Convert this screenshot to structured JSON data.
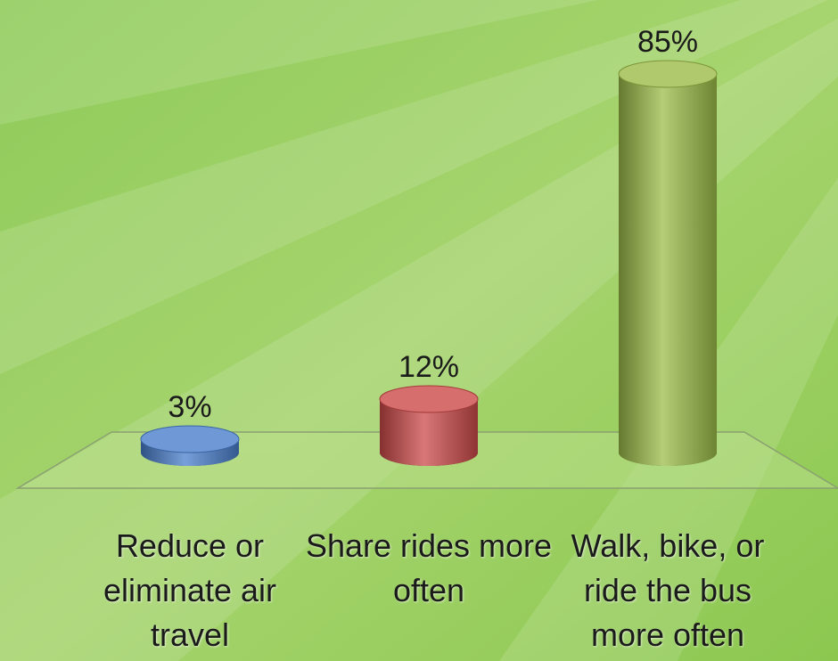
{
  "chart_data": {
    "type": "bar",
    "categories": [
      "Reduce or eliminate air travel",
      "Share rides more often",
      "Walk, bike, or ride the bus more often"
    ],
    "values": [
      3,
      12,
      85
    ],
    "value_labels": [
      "3%",
      "12%",
      "85%"
    ],
    "colors": [
      "#4a7fcc",
      "#cc4a4a",
      "#9cbc48"
    ]
  }
}
